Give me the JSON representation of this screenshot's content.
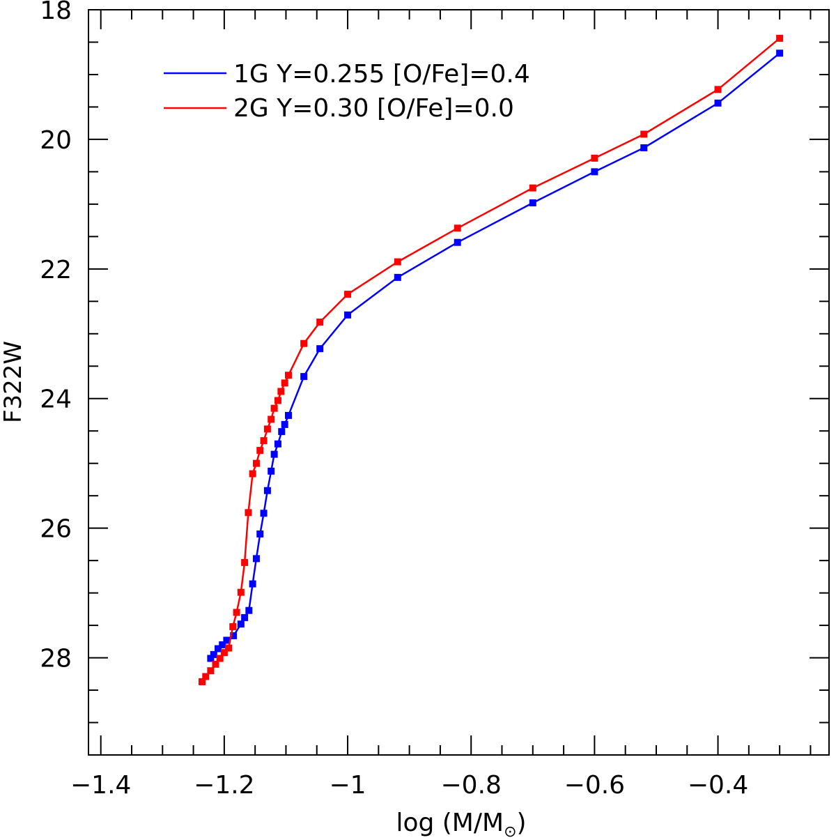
{
  "chart_data": {
    "type": "line",
    "title": "",
    "xlabel": "log (M/M",
    "xlabel_sub": "⊙",
    "xlabel_close": ")",
    "ylabel": "F322W",
    "xlim": [
      -1.42,
      -0.22
    ],
    "ylim": [
      29.5,
      18
    ],
    "y_inverted": true,
    "grid": false,
    "legend_position": "top-left",
    "x_ticks": [
      -1.4,
      -1.2,
      -1,
      -0.8,
      -0.6,
      -0.4
    ],
    "x_tick_labels": [
      "−1.4",
      "−1.2",
      "−1",
      "−0.8",
      "−0.6",
      "−0.4"
    ],
    "y_ticks": [
      18,
      20,
      22,
      24,
      26,
      28
    ],
    "y_tick_labels": [
      "18",
      "20",
      "22",
      "24",
      "26",
      "28"
    ],
    "series": [
      {
        "name": "1G Y=0.255 [O/Fe]=0.4",
        "color": "#0000ff",
        "marker": "square",
        "x": [
          -0.3,
          -0.4,
          -0.52,
          -0.6,
          -0.7,
          -0.822,
          -0.919,
          -1.0,
          -1.045,
          -1.071,
          -1.096,
          -1.102,
          -1.107,
          -1.113,
          -1.119,
          -1.124,
          -1.13,
          -1.136,
          -1.142,
          -1.148,
          -1.154,
          -1.16,
          -1.167,
          -1.173,
          -1.185,
          -1.196,
          -1.203,
          -1.21,
          -1.217,
          -1.222
        ],
        "y": [
          18.67,
          19.44,
          20.13,
          20.5,
          20.98,
          21.59,
          22.13,
          22.71,
          23.23,
          23.66,
          24.26,
          24.4,
          24.51,
          24.7,
          24.86,
          25.12,
          25.42,
          25.77,
          26.09,
          26.47,
          26.86,
          27.27,
          27.38,
          27.48,
          27.66,
          27.73,
          27.8,
          27.86,
          27.95,
          28.01
        ]
      },
      {
        "name": "2G Y=0.30 [O/Fe]=0.0",
        "color": "#ff0000",
        "marker": "square",
        "x": [
          -0.3,
          -0.4,
          -0.52,
          -0.6,
          -0.7,
          -0.822,
          -0.919,
          -1.0,
          -1.045,
          -1.071,
          -1.096,
          -1.102,
          -1.108,
          -1.113,
          -1.119,
          -1.124,
          -1.13,
          -1.136,
          -1.142,
          -1.148,
          -1.154,
          -1.161,
          -1.167,
          -1.173,
          -1.18,
          -1.186,
          -1.193,
          -1.2,
          -1.207,
          -1.214,
          -1.222,
          -1.23,
          -1.236
        ],
        "y": [
          18.44,
          19.23,
          19.92,
          20.29,
          20.75,
          21.37,
          21.89,
          22.39,
          22.82,
          23.15,
          23.64,
          23.76,
          23.89,
          24.03,
          24.15,
          24.32,
          24.47,
          24.65,
          24.8,
          25.0,
          25.16,
          25.76,
          26.53,
          26.99,
          27.3,
          27.52,
          27.85,
          27.92,
          28.01,
          28.1,
          28.2,
          28.29,
          28.37
        ]
      }
    ]
  }
}
